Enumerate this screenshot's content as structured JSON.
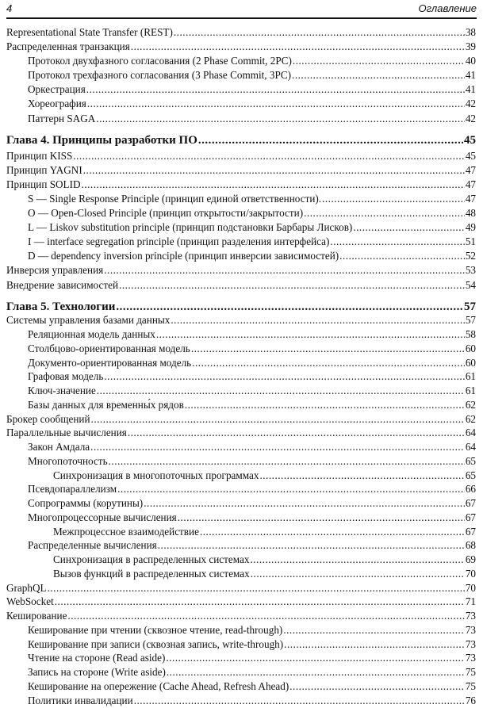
{
  "header": {
    "page_number": "4",
    "title": "Оглавление"
  },
  "entries": [
    {
      "level": 0,
      "text": "Representational State Transfer (REST)",
      "page": "38"
    },
    {
      "level": 0,
      "text": "Распределенная транзакция",
      "page": "39"
    },
    {
      "level": 1,
      "text": "Протокол двухфазного согласования (2 Phase Commit, 2PC)",
      "page": "40"
    },
    {
      "level": 1,
      "text": "Протокол трехфазного согласования (3 Phase Commit, 3PC)",
      "page": "41"
    },
    {
      "level": 1,
      "text": "Оркестрация",
      "page": "41"
    },
    {
      "level": 1,
      "text": "Хореография",
      "page": "42"
    },
    {
      "level": 1,
      "text": "Паттерн SAGA",
      "page": "42"
    },
    {
      "level": "chapter",
      "text": "Глава 4. Принципы разработки ПО",
      "page": "45"
    },
    {
      "level": 0,
      "text": "Принцип KISS",
      "page": "45"
    },
    {
      "level": 0,
      "text": "Принцип YAGNI",
      "page": "47"
    },
    {
      "level": 0,
      "text": "Принцип SOLID",
      "page": "47"
    },
    {
      "level": 1,
      "text": "S — Single Response Principle (принцип единой ответственности).",
      "page": "47"
    },
    {
      "level": 1,
      "text": "O — Open-Closed Principle (принцип открытости/закрытости)",
      "page": "48"
    },
    {
      "level": 1,
      "text": "L — Liskov substitution principle (принцип подстановки Барбары Лисков)",
      "page": "49"
    },
    {
      "level": 1,
      "text": "I — interface segregation principle (принцип разделения интерфейса)",
      "page": "51"
    },
    {
      "level": 1,
      "text": "D — dependency inversion principle (принцип инверсии зависимостей)",
      "page": "52"
    },
    {
      "level": 0,
      "text": "Инверсия управления",
      "page": "53"
    },
    {
      "level": 0,
      "text": "Внедрение зависимостей",
      "page": "54"
    },
    {
      "level": "chapter",
      "text": "Глава 5. Технологии",
      "page": "57"
    },
    {
      "level": 0,
      "text": "Системы управления базами данных",
      "page": "57"
    },
    {
      "level": 1,
      "text": "Реляционная модель данных",
      "page": "58"
    },
    {
      "level": 1,
      "text": "Столбцово-ориентированная модель",
      "page": "60"
    },
    {
      "level": 1,
      "text": "Документо-ориентированная модель",
      "page": "60"
    },
    {
      "level": 1,
      "text": "Графовая модель",
      "page": "61"
    },
    {
      "level": 1,
      "text": "Ключ-значение",
      "page": "61"
    },
    {
      "level": 1,
      "text": "Базы данных для временны́х рядов",
      "page": "62"
    },
    {
      "level": 0,
      "text": "Брокер сообщений",
      "page": "62"
    },
    {
      "level": 0,
      "text": "Параллельные вычисления",
      "page": "64"
    },
    {
      "level": 1,
      "text": "Закон Амдала",
      "page": "64"
    },
    {
      "level": 1,
      "text": "Многопоточность",
      "page": "65"
    },
    {
      "level": 2,
      "text": "Синхронизация в многопоточных программах",
      "page": "65"
    },
    {
      "level": 1,
      "text": "Псевдопараллелизм",
      "page": "66"
    },
    {
      "level": 1,
      "text": "Сопрограммы (корутины)",
      "page": "67"
    },
    {
      "level": 1,
      "text": "Многопроцессорные вычисления",
      "page": "67"
    },
    {
      "level": 2,
      "text": "Межпроцессное взаимодействие",
      "page": "67"
    },
    {
      "level": 1,
      "text": "Распределенные вычисления",
      "page": "68"
    },
    {
      "level": 2,
      "text": "Синхронизация в распределенных системах",
      "page": "69"
    },
    {
      "level": 2,
      "text": "Вызов функций в распределенных системах",
      "page": "70"
    },
    {
      "level": 0,
      "text": "GraphQL",
      "page": "70"
    },
    {
      "level": 0,
      "text": "WebSocket",
      "page": "71"
    },
    {
      "level": 0,
      "text": "Кеширование",
      "page": "73"
    },
    {
      "level": 1,
      "text": "Кеширование при чтении (сквозное чтение, read-through)",
      "page": "73"
    },
    {
      "level": 1,
      "text": "Кеширование при записи (сквозная запись, write-through)",
      "page": "73"
    },
    {
      "level": 1,
      "text": "Чтение на стороне (Read aside)",
      "page": "73"
    },
    {
      "level": 1,
      "text": "Запись на стороне (Write aside)",
      "page": "75"
    },
    {
      "level": 1,
      "text": "Кеширование на опережение (Cache Ahead, Refresh Ahead)",
      "page": "75"
    },
    {
      "level": 1,
      "text": "Политики инвалидации",
      "page": "76"
    }
  ]
}
